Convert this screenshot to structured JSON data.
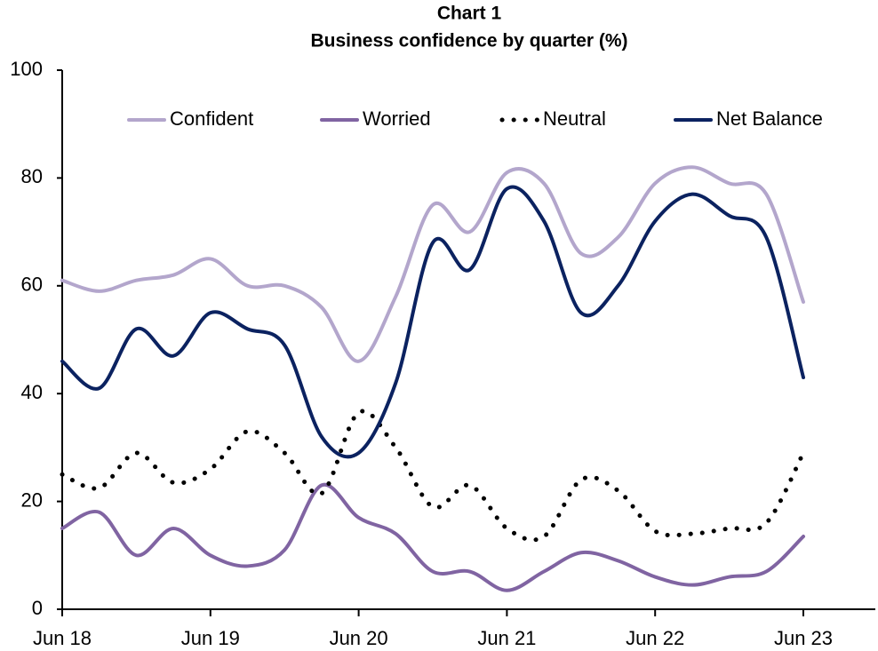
{
  "chart_data": {
    "type": "line",
    "title": "Chart 1",
    "subtitle": "Business confidence by quarter (%)",
    "categories": [
      "Jun 18",
      null,
      null,
      null,
      "Jun 19",
      null,
      null,
      null,
      "Jun 20",
      null,
      null,
      null,
      "Jun 21",
      null,
      null,
      null,
      "Jun 22",
      null,
      null,
      null,
      "Jun 23"
    ],
    "series": [
      {
        "name": "Confident",
        "color": "#b3a6cc",
        "style": "solid",
        "values": [
          61,
          59,
          61,
          62,
          65,
          60,
          60,
          56,
          46,
          58,
          75,
          70,
          81,
          79,
          66,
          69,
          79,
          82,
          79,
          77,
          57
        ]
      },
      {
        "name": "Worried",
        "color": "#8064a2",
        "style": "solid",
        "values": [
          15,
          18,
          10,
          15,
          10,
          8,
          11,
          23,
          17,
          14,
          7,
          7,
          3.5,
          7,
          10.5,
          9,
          6,
          4.5,
          6,
          7,
          13.5
        ]
      },
      {
        "name": "Neutral",
        "color": "#000000",
        "style": "dotted",
        "values": [
          25,
          22.5,
          29,
          23.5,
          26,
          33,
          29,
          21.5,
          36.5,
          30,
          19,
          23,
          15,
          13.5,
          24,
          22,
          14.5,
          14,
          15,
          16,
          29
        ]
      },
      {
        "name": "Net Balance",
        "color": "#0b2260",
        "style": "solid",
        "values": [
          46,
          41,
          52,
          47,
          55,
          52,
          49,
          32,
          29,
          42,
          68,
          63,
          78,
          72,
          55,
          60,
          72,
          77,
          73,
          69,
          43
        ]
      }
    ],
    "ylim": [
      0,
      100
    ],
    "yticks": [
      0,
      20,
      40,
      60,
      80,
      100
    ],
    "grid": false,
    "legend": "top"
  }
}
